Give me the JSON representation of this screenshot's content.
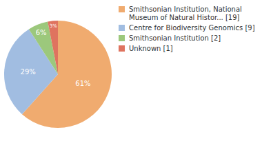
{
  "chart_data": {
    "type": "pie",
    "categories": [
      "Smithsonian Institution, National Museum of Natural Histor... [19]",
      "Centre for Biodiversity Genomics [9]",
      "Smithsonian Institution [2]",
      "Unknown [1]"
    ],
    "values": [
      61,
      29,
      6,
      3
    ],
    "value_labels": [
      "61%",
      "29%",
      "6%",
      "3%"
    ],
    "colors": [
      "#f0ab6f",
      "#a1bde1",
      "#9cc87c",
      "#df735f"
    ],
    "data_labels": true,
    "legend": "right"
  }
}
